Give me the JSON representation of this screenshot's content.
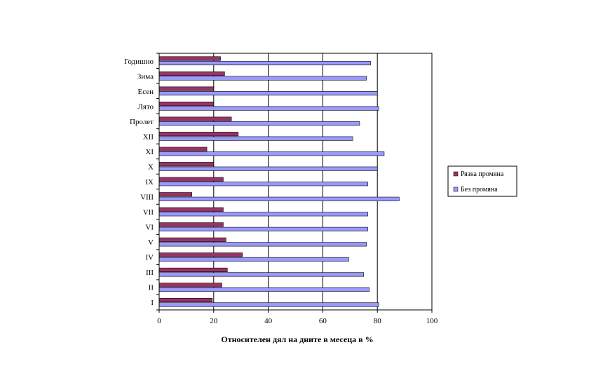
{
  "chart_data": {
    "type": "bar",
    "orientation": "horizontal",
    "categories": [
      "I",
      "II",
      "III",
      "IV",
      "V",
      "VI",
      "VII",
      "VIII",
      "IX",
      "X",
      "XI",
      "XII",
      "Пролет",
      "Лято",
      "Есен",
      "Зима",
      "Годишно"
    ],
    "series": [
      {
        "name": "Рязка промяна",
        "color": "#993366",
        "values": [
          19.5,
          23,
          25,
          30.5,
          24.5,
          23.5,
          23.5,
          12,
          23.5,
          20,
          17.5,
          29,
          26.5,
          20,
          20,
          24,
          22.5
        ]
      },
      {
        "name": "Без промяна",
        "color": "#9999ff",
        "values": [
          80.5,
          77,
          75,
          69.5,
          76,
          76.5,
          76.5,
          88,
          76.5,
          80,
          82.5,
          71,
          73.5,
          80.5,
          80,
          76,
          77.5
        ]
      }
    ],
    "xlabel": "Относителен  дял на  дните  в месеца  в %",
    "xlim": [
      0,
      100
    ],
    "xticks": [
      "0",
      "20",
      "40",
      "60",
      "80",
      "100"
    ],
    "grid": "vertical major gridlines",
    "legend_position": "right"
  }
}
